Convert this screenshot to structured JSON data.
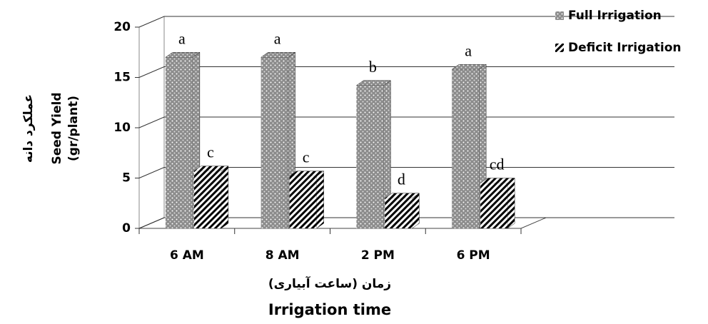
{
  "chart_data": {
    "type": "bar3d",
    "y_label_lines": [
      "عملکرد دانه",
      "Seed Yield",
      "(gr/plant)"
    ],
    "x_label_lines": [
      "زمان (ساعت آبیاری)",
      "Irrigation time"
    ],
    "categories": [
      "6 AM",
      "8 AM",
      "2 PM",
      "6 PM"
    ],
    "series": [
      {
        "name": "Full Irrigation",
        "color": "#8c8c8c",
        "values": [
          17,
          17,
          14.2,
          15.8
        ],
        "letters": [
          "a",
          "a",
          "b",
          "a"
        ]
      },
      {
        "name": "Deficit Irrigation",
        "color": "#000000",
        "values": [
          5.7,
          5.2,
          3.0,
          4.5
        ],
        "letters": [
          "c",
          "c",
          "d",
          "cd"
        ]
      }
    ],
    "ylim": [
      0,
      20
    ],
    "yticks": [
      0,
      5,
      10,
      15,
      20
    ],
    "grid": true
  }
}
